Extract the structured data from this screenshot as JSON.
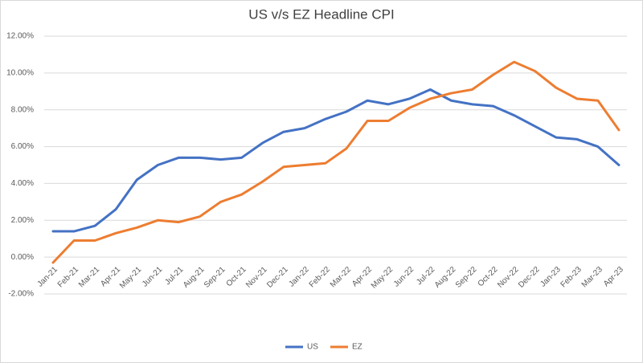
{
  "chart_data": {
    "type": "line",
    "title": "US v/s EZ Headline CPI",
    "categories": [
      "Jan-21",
      "Feb-21",
      "Mar-21",
      "Apr-21",
      "May-21",
      "Jun-21",
      "Jul-21",
      "Aug-21",
      "Sep-21",
      "Oct-21",
      "Nov-21",
      "Dec-21",
      "Jan-22",
      "Feb-22",
      "Mar-22",
      "Apr-22",
      "May-22",
      "Jun-22",
      "Jul-22",
      "Aug-22",
      "Sep-22",
      "Oct-22",
      "Nov-22",
      "Dec-22",
      "Jan-23",
      "Feb-23",
      "Mar-23",
      "Apr-23"
    ],
    "series": [
      {
        "name": "US",
        "color": "#4472c4",
        "values": [
          1.4,
          1.4,
          1.7,
          2.6,
          4.2,
          5.0,
          5.4,
          5.4,
          5.3,
          5.4,
          6.2,
          6.8,
          7.0,
          7.5,
          7.9,
          8.5,
          8.3,
          8.6,
          9.1,
          8.5,
          8.3,
          8.2,
          7.7,
          7.1,
          6.5,
          6.4,
          6.0,
          5.0
        ]
      },
      {
        "name": "EZ",
        "color": "#ed7d31",
        "values": [
          -0.3,
          0.9,
          0.9,
          1.3,
          1.6,
          2.0,
          1.9,
          2.2,
          3.0,
          3.4,
          4.1,
          4.9,
          5.0,
          5.1,
          5.9,
          7.4,
          7.4,
          8.1,
          8.6,
          8.9,
          9.1,
          9.9,
          10.6,
          10.1,
          9.2,
          8.6,
          8.5,
          6.9
        ]
      }
    ],
    "ylim": [
      -2,
      12
    ],
    "yticks": [
      {
        "value": -2,
        "label": "-2.00%"
      },
      {
        "value": 0,
        "label": "0.00%"
      },
      {
        "value": 2,
        "label": "2.00%"
      },
      {
        "value": 4,
        "label": "4.00%"
      },
      {
        "value": 6,
        "label": "6.00%"
      },
      {
        "value": 8,
        "label": "8.00%"
      },
      {
        "value": 10,
        "label": "10.00%"
      },
      {
        "value": 12,
        "label": "12.00%"
      }
    ],
    "grid": true,
    "legend": "bottom"
  }
}
